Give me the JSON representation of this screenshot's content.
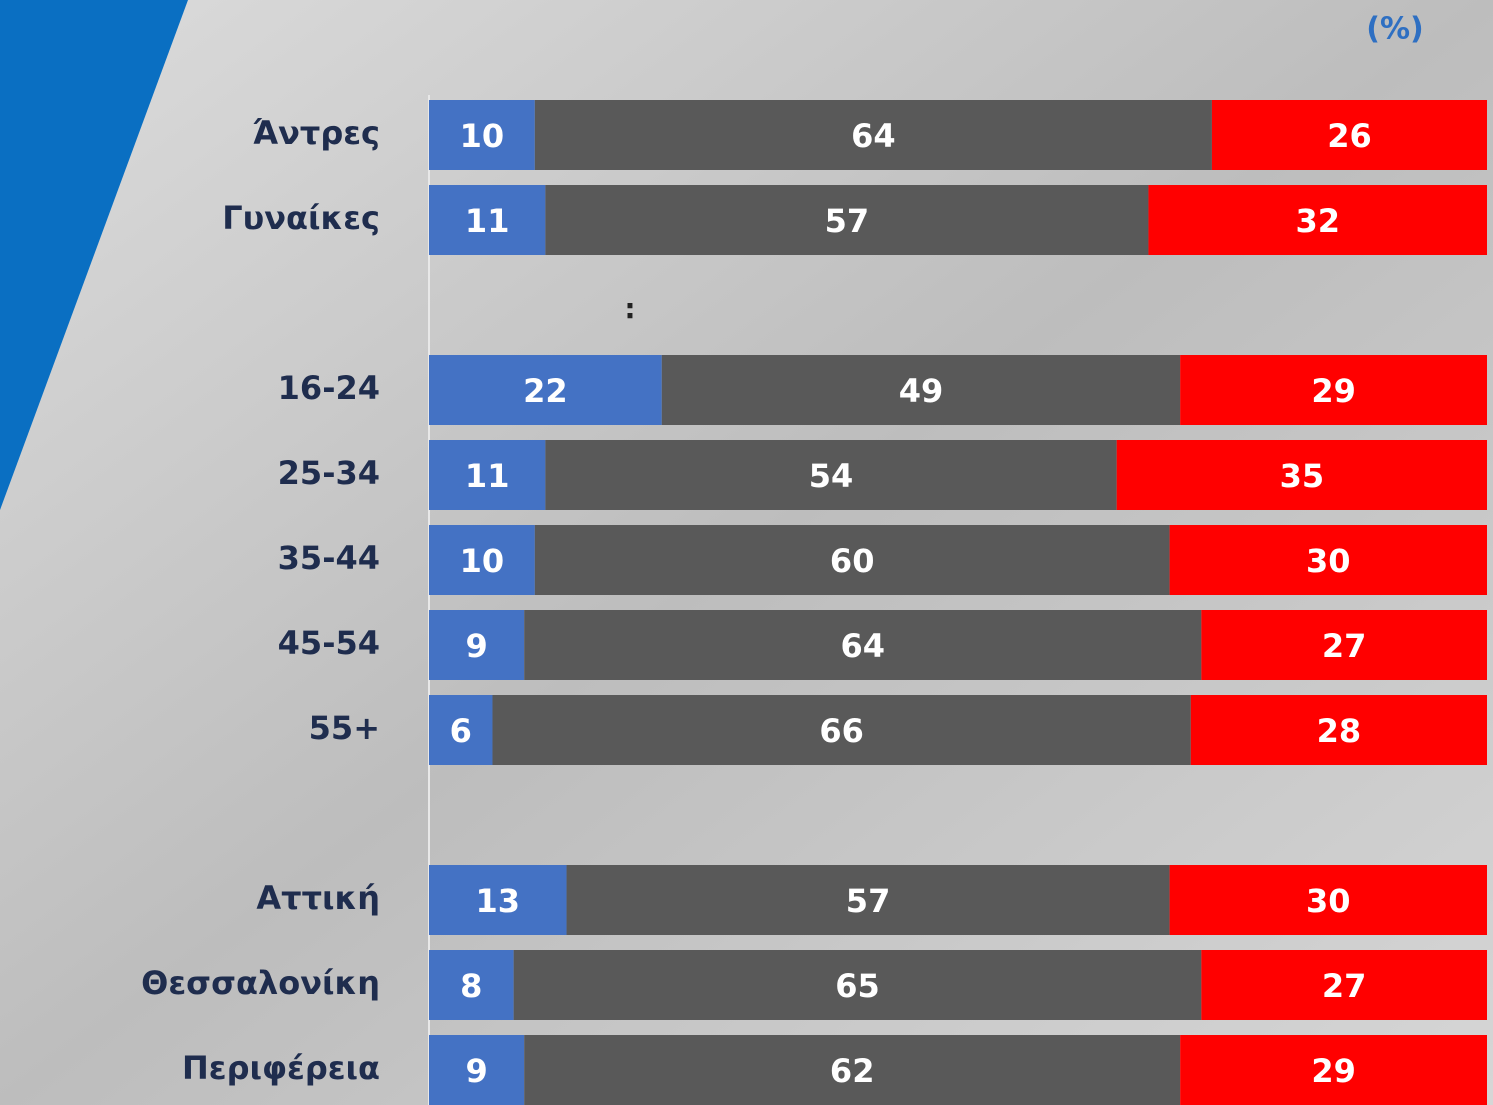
{
  "chart_data": {
    "type": "stacked-bar",
    "title": "(%)",
    "annotation": ":",
    "categories": [
      "Άντρες",
      "Γυναίκες",
      null,
      "16-24",
      "25-34",
      "35-44",
      "45-54",
      "55+",
      null,
      "Αττική",
      "Θεσσαλονίκη",
      "Περιφέρεια"
    ],
    "series": [
      {
        "color": "#4472c4",
        "values": [
          10,
          11,
          null,
          22,
          11,
          10,
          9,
          6,
          null,
          13,
          8,
          9
        ]
      },
      {
        "color": "#595959",
        "values": [
          64,
          57,
          null,
          49,
          54,
          60,
          64,
          66,
          null,
          57,
          65,
          62
        ]
      },
      {
        "color": "#ff0000",
        "values": [
          26,
          32,
          null,
          29,
          35,
          30,
          27,
          28,
          null,
          30,
          27,
          29
        ]
      }
    ],
    "xlim": [
      0,
      100
    ]
  }
}
